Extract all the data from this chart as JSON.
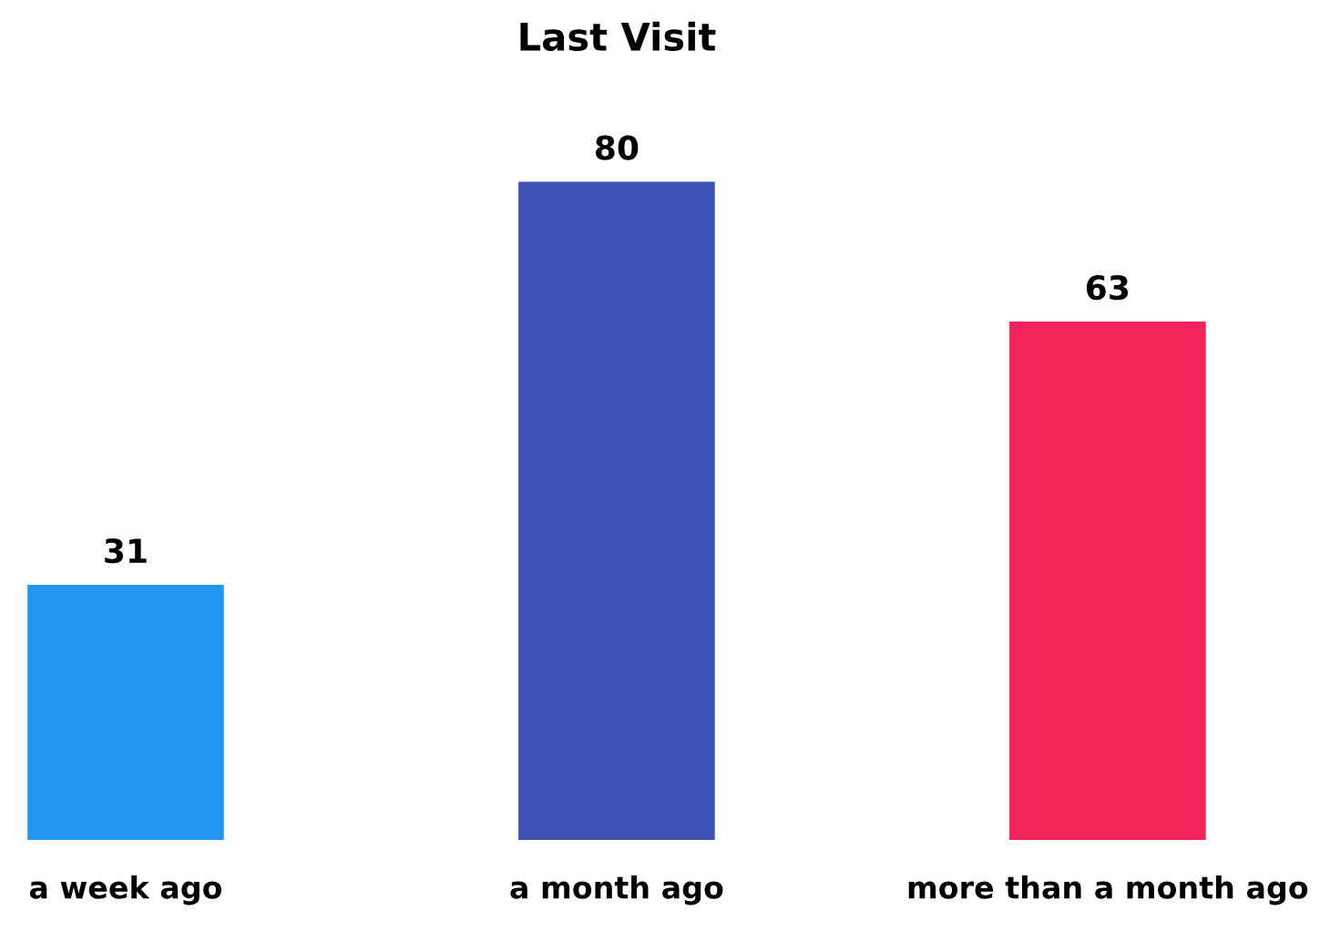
{
  "chart_data": {
    "type": "bar",
    "title": "Last Visit",
    "categories": [
      "a week ago",
      "a month ago",
      "more than a month ago"
    ],
    "values": [
      31,
      80,
      63
    ],
    "colors": [
      "#2196f3",
      "#3f51b5",
      "#f0245a"
    ],
    "data_labels": true,
    "grid": false,
    "legend": false
  }
}
